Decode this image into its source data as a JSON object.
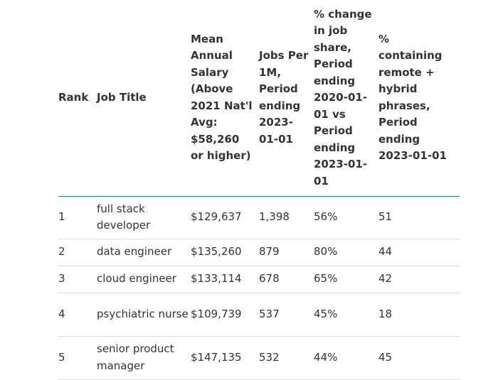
{
  "table": {
    "headers": [
      "Rank",
      "Job Title",
      "Mean Annual Salary (Above 2021 Nat'l Avg: $58,260 or higher)",
      "Jobs Per 1M, Period ending 2023-01-01",
      "% change in job share, Period ending 2020-01-01 vs Period ending 2023-01-01",
      "% containing remote + hybrid phrases, Period ending 2023-01-01"
    ],
    "rows": [
      [
        "1",
        "full stack developer",
        "$129,637",
        "1,398",
        "56%",
        "51"
      ],
      [
        "2",
        "data engineer",
        "$135,260",
        "879",
        "80%",
        "44"
      ],
      [
        "3",
        "cloud engineer",
        "$133,114",
        "678",
        "65%",
        "42"
      ],
      [
        "4",
        "psychiatric nurse",
        "$109,739",
        "537",
        "45%",
        "18"
      ],
      [
        "5",
        "senior product manager",
        "$147,135",
        "532",
        "44%",
        "45"
      ]
    ]
  },
  "colors": {
    "header_rule": "#2b7a62",
    "row_rule": "#dddddd",
    "text": "#333333"
  }
}
